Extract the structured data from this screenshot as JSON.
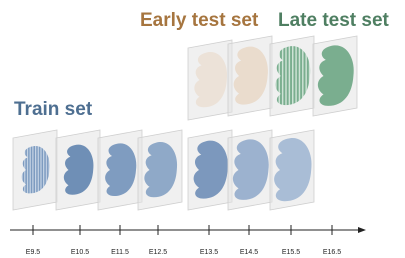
{
  "titles": {
    "early": "Early test set",
    "late": "Late test set",
    "train": "Train set"
  },
  "timeline": {
    "labels": [
      "E9.5",
      "E10.5",
      "E11.5",
      "E12.5",
      "E13.5",
      "E14.5",
      "E15.5",
      "E16.5"
    ]
  }
}
